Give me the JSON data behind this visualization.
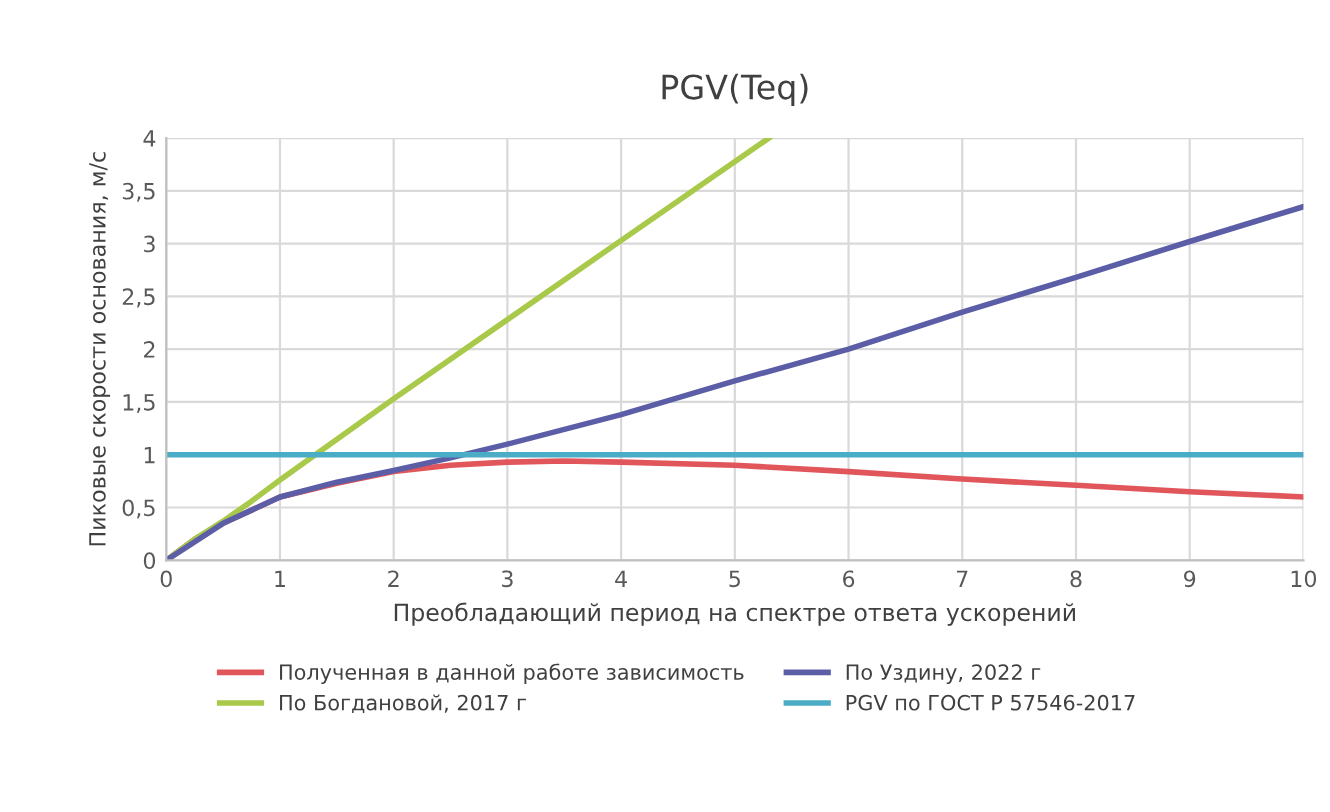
{
  "chart_data": {
    "type": "line",
    "title": "PGV(Teq)",
    "xlabel": "Преобладающий период на спектре ответа ускорений",
    "ylabel": "Пиковые скорости основания, м/с",
    "xlim": [
      0,
      10
    ],
    "xticks": [
      0,
      1,
      2,
      3,
      4,
      5,
      6,
      7,
      8,
      9,
      10
    ],
    "ylim": [
      0,
      4
    ],
    "yticks": [
      0,
      {
        "value": 0.5,
        "label": "0,5"
      },
      1,
      {
        "value": 1.5,
        "label": "1,5"
      },
      2,
      {
        "value": 2.5,
        "label": "2,5"
      },
      3,
      {
        "value": 3.5,
        "label": "3,5"
      },
      4
    ],
    "grid": true,
    "legend": "bottom",
    "marker": "none",
    "line_style": "solid",
    "series": [
      {
        "name": "Полученная в данной работе зависимость",
        "color": "#e0565b",
        "x": [
          0,
          0.25,
          0.5,
          1,
          1.5,
          2,
          2.5,
          3,
          3.5,
          4,
          5,
          6,
          7,
          8,
          9,
          10
        ],
        "values": [
          0,
          0.2,
          0.35,
          0.6,
          0.73,
          0.84,
          0.9,
          0.93,
          0.94,
          0.93,
          0.9,
          0.84,
          0.77,
          0.71,
          0.65,
          0.6
        ]
      },
      {
        "name": "По Богдановой, 2017 г",
        "color": "#a9c94a",
        "x": [
          0,
          0.25,
          0.5,
          0.75,
          1,
          2,
          3,
          4,
          5.3
        ],
        "values": [
          0,
          0.2,
          0.37,
          0.56,
          0.76,
          1.53,
          2.28,
          3.03,
          4
        ]
      },
      {
        "name": "По Уздину, 2022 г",
        "color": "#5b5ea6",
        "x": [
          0,
          0.5,
          1,
          1.5,
          2,
          2.5,
          3,
          4,
          5,
          6,
          7,
          8,
          9,
          10
        ],
        "values": [
          0,
          0.35,
          0.6,
          0.74,
          0.85,
          0.97,
          1.1,
          1.38,
          1.7,
          2.0,
          2.35,
          2.68,
          3.02,
          3.35
        ]
      },
      {
        "name": "PGV по ГОСТ Р 57546-2017",
        "color": "#4bacc6",
        "x": [
          0,
          10
        ],
        "values": [
          1,
          1
        ]
      }
    ]
  }
}
